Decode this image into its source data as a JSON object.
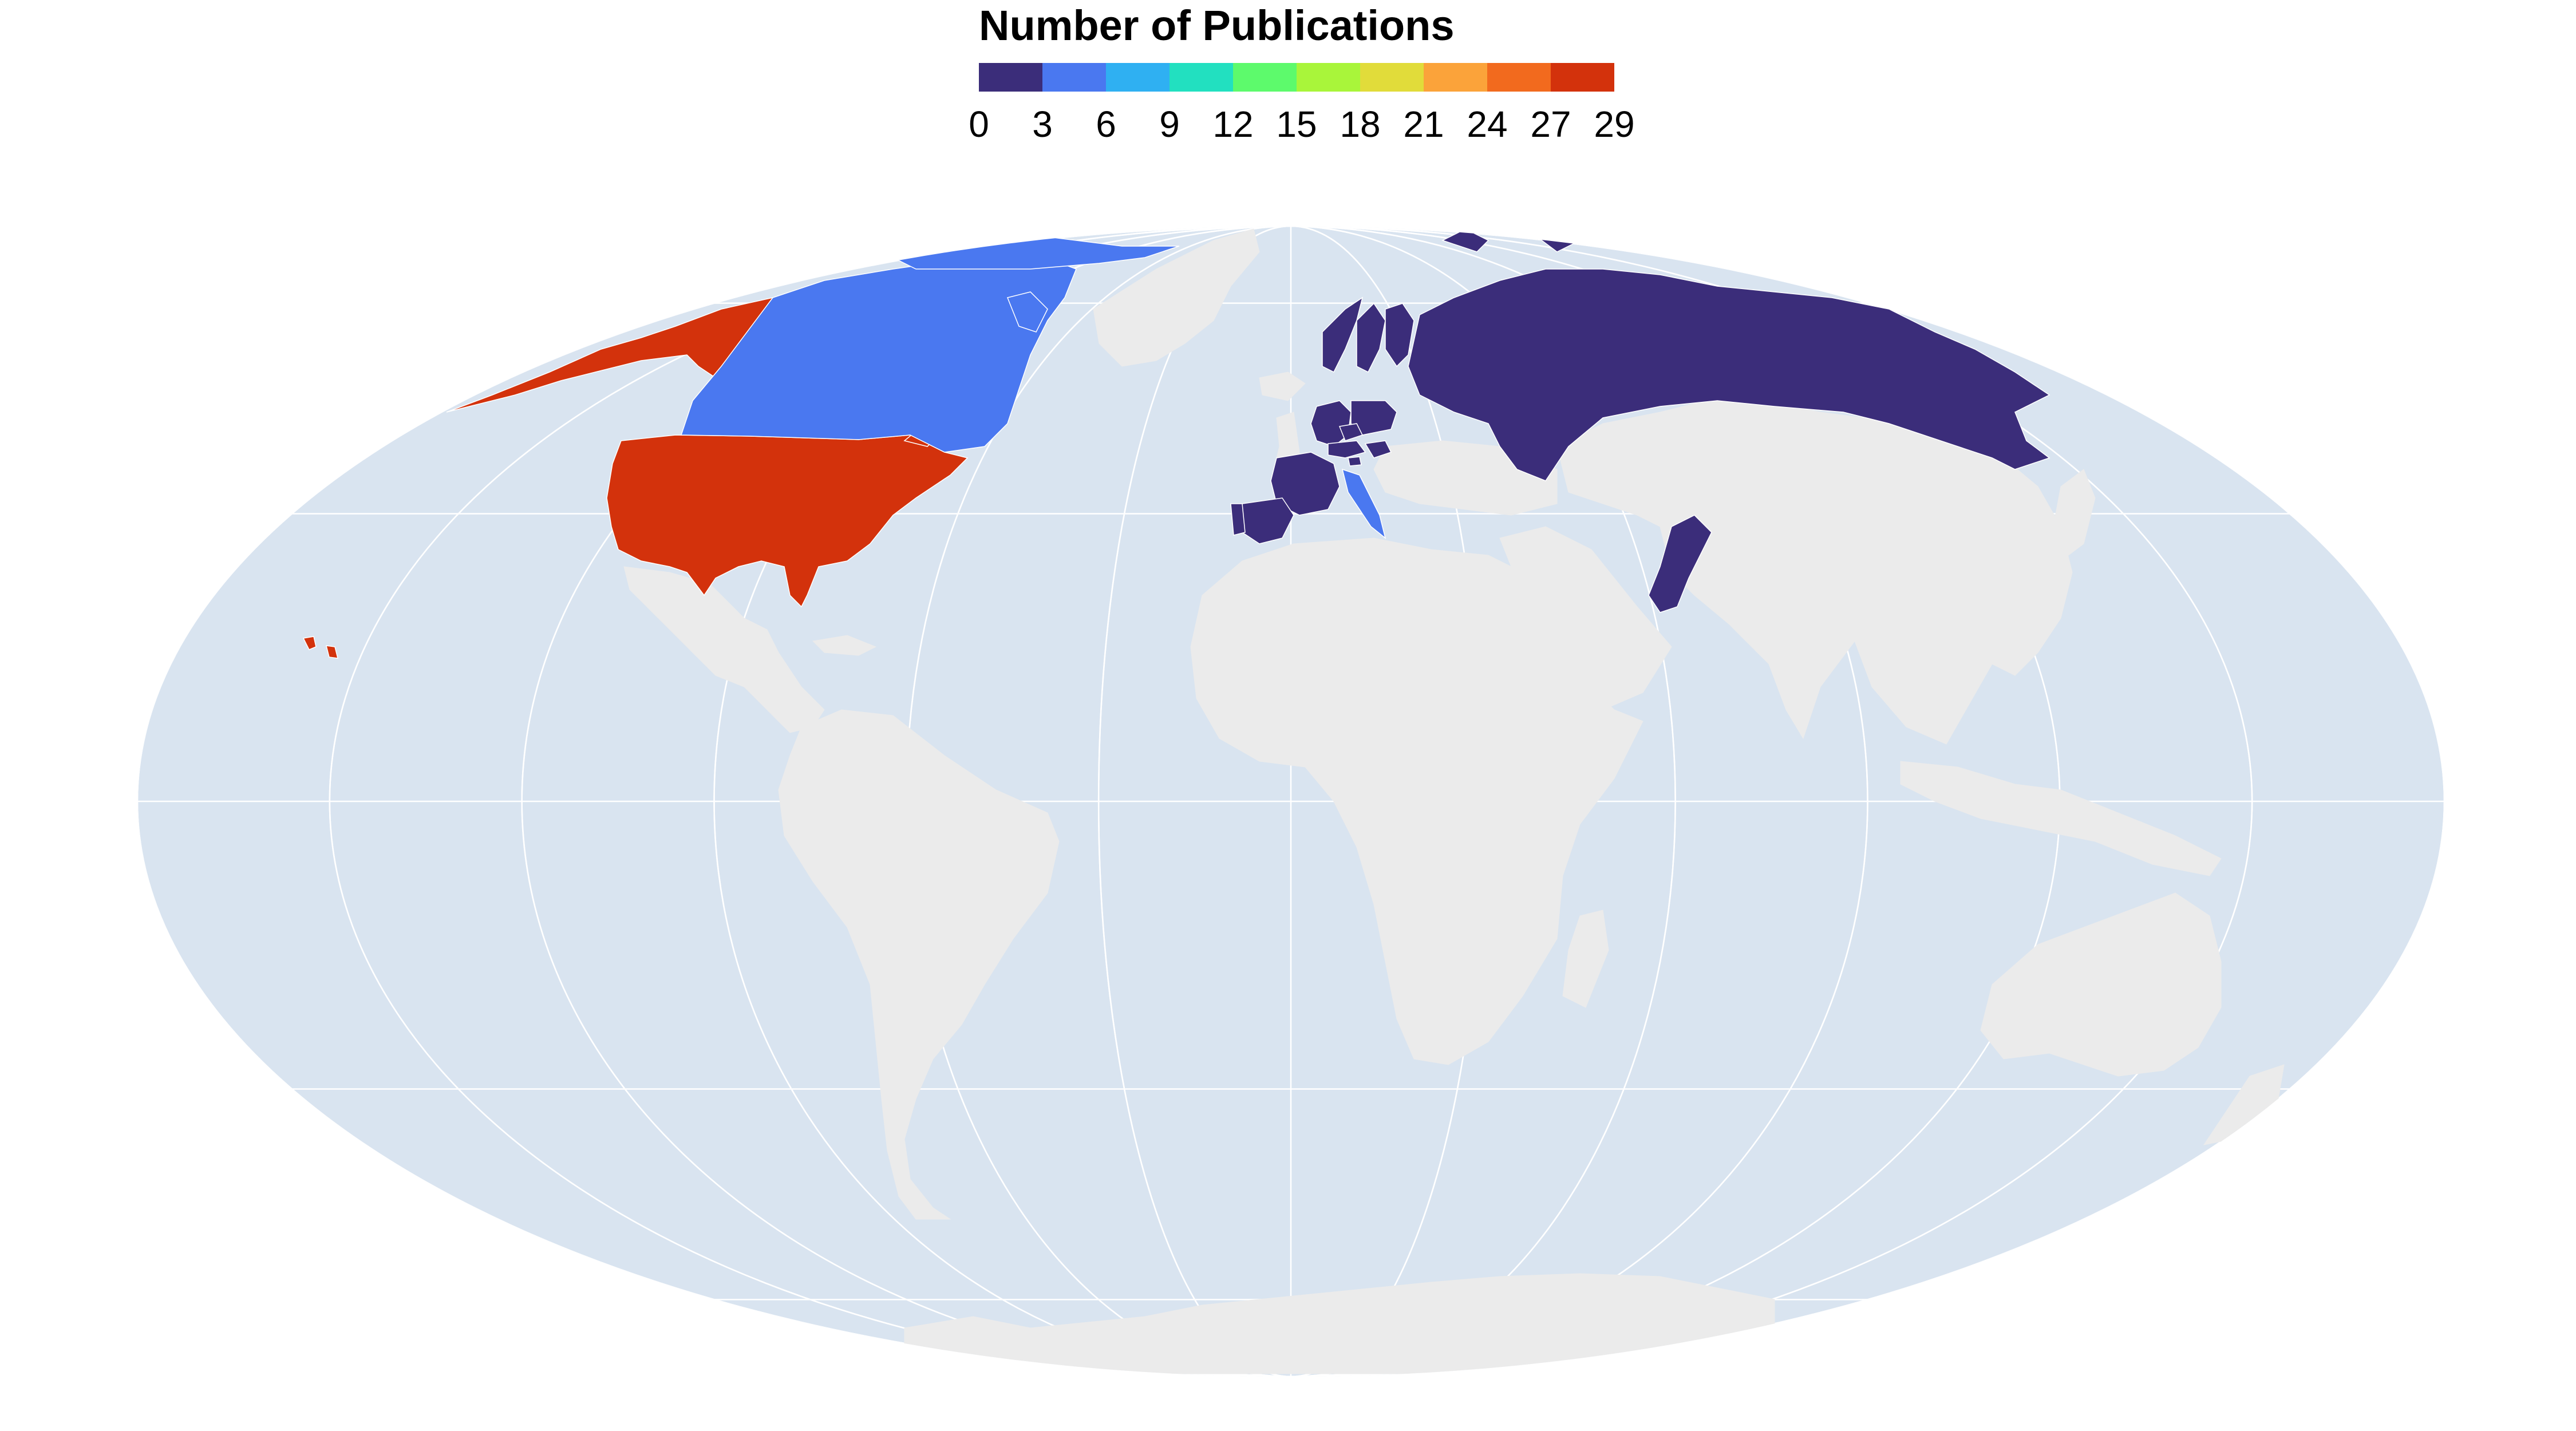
{
  "title": "Number of Publications",
  "colorscale": {
    "min": 0,
    "max": 29,
    "ticks": [
      "0",
      "3",
      "6",
      "9",
      "12",
      "15",
      "18",
      "21",
      "24",
      "27",
      "29"
    ],
    "colors": [
      "#3b2d7a",
      "#4a78f0",
      "#2fb0f2",
      "#22e0c0",
      "#5dfa6c",
      "#a9f53a",
      "#e1dc3a",
      "#fba33a",
      "#f26a1e",
      "#d3320c"
    ]
  },
  "map_colors": {
    "ocean": "#d9e4f0",
    "land": "#ebebeb",
    "graticule": "#ffffff"
  },
  "chart_data": {
    "type": "choropleth",
    "projection": "mollweide",
    "value_label": "Number of Publications",
    "countries": [
      {
        "name": "United States",
        "value": 29
      },
      {
        "name": "Canada",
        "value": 4
      },
      {
        "name": "Russia",
        "value": 1
      },
      {
        "name": "Pakistan",
        "value": 2
      },
      {
        "name": "France",
        "value": 1
      },
      {
        "name": "Spain",
        "value": 1
      },
      {
        "name": "Portugal",
        "value": 1
      },
      {
        "name": "Italy",
        "value": 5
      },
      {
        "name": "Germany",
        "value": 2
      },
      {
        "name": "Poland",
        "value": 2
      },
      {
        "name": "Sweden",
        "value": 2
      },
      {
        "name": "Norway",
        "value": 1
      },
      {
        "name": "Finland",
        "value": 2
      },
      {
        "name": "Austria",
        "value": 1
      },
      {
        "name": "Czech Republic",
        "value": 2
      },
      {
        "name": "Hungary",
        "value": 1
      },
      {
        "name": "Slovenia",
        "value": 1
      }
    ]
  }
}
